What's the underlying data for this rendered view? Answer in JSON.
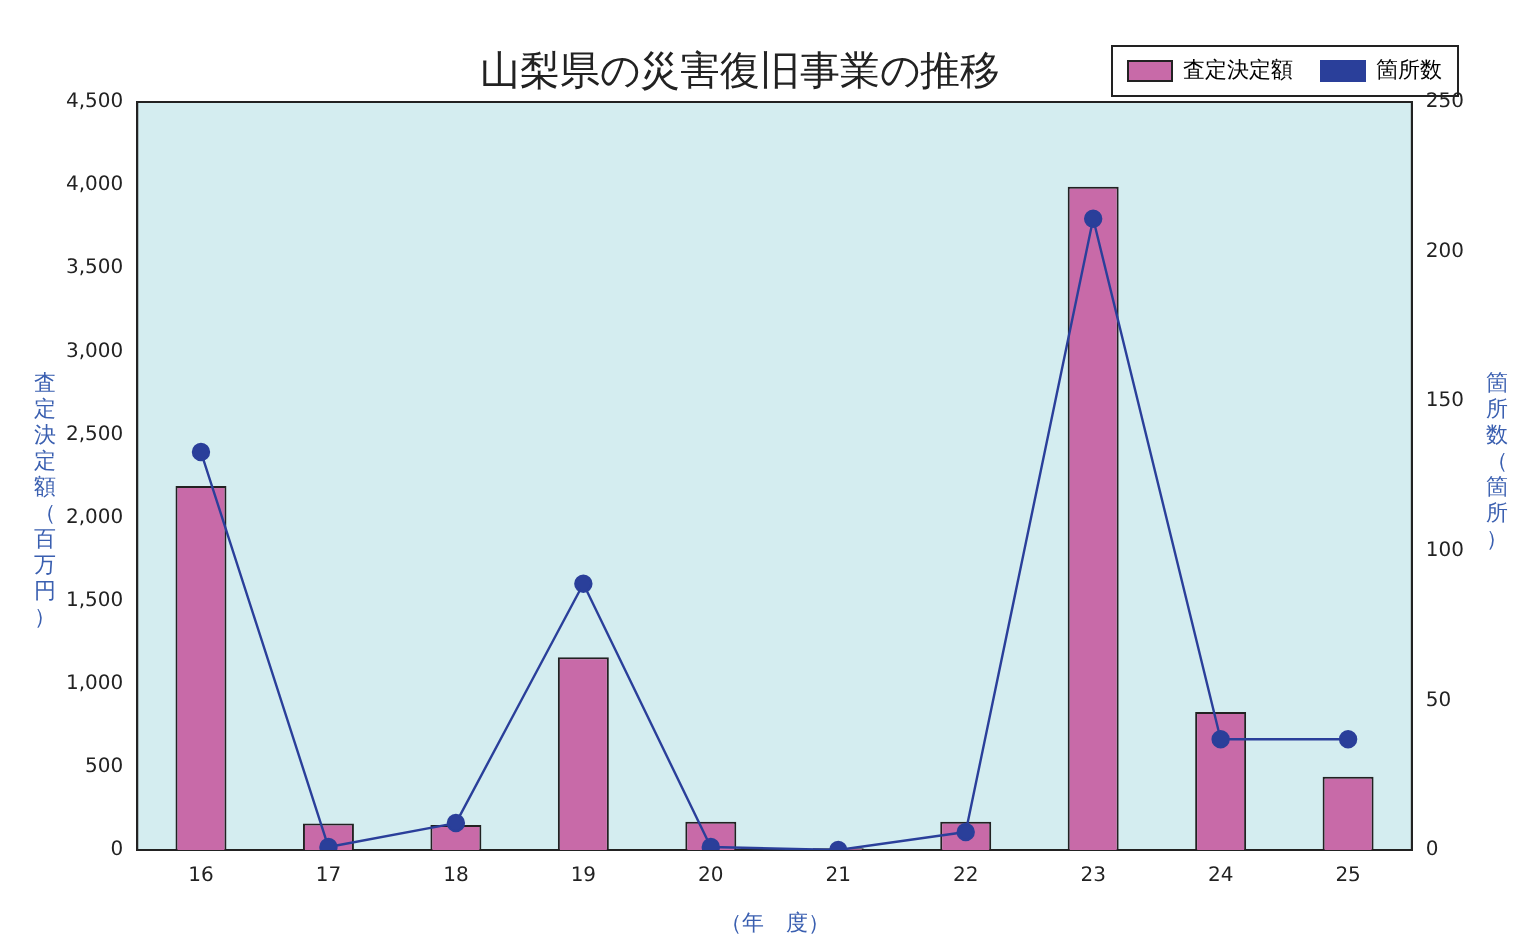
{
  "chart_data": {
    "type": "bar",
    "title": "山梨県の災害復旧事業の推移",
    "xlabel": "（年　度）",
    "ylabel": "査定決定額（百万円）",
    "y2label": "箇所数（箇所）",
    "categories": [
      "16",
      "17",
      "18",
      "19",
      "20",
      "21",
      "22",
      "23",
      "24",
      "25"
    ],
    "series": [
      {
        "name": "査定決定額",
        "color": "#c86aa8",
        "values": [
          2190,
          160,
          150,
          1160,
          170,
          10,
          170,
          3990,
          830,
          440
        ]
      },
      {
        "name": "箇所数",
        "type": "line",
        "axis": "y2",
        "color": "#2a3f9a",
        "values": [
          133,
          1,
          9,
          89,
          1,
          0,
          6,
          211,
          37,
          37
        ]
      }
    ],
    "ylim": [
      0,
      4500
    ],
    "yticks": [
      {
        "value": 0,
        "label": "0"
      },
      {
        "value": 500,
        "label": "500"
      },
      {
        "value": 1000,
        "label": "1,000"
      },
      {
        "value": 1500,
        "label": "1,500"
      },
      {
        "value": 2000,
        "label": "2,000"
      },
      {
        "value": 2500,
        "label": "2,500"
      },
      {
        "value": 3000,
        "label": "3,000"
      },
      {
        "value": 3500,
        "label": "3,500"
      },
      {
        "value": 4000,
        "label": "4,000"
      },
      {
        "value": 4500,
        "label": "4,500"
      }
    ],
    "y2lim": [
      0,
      250
    ],
    "y2ticks": [
      0,
      50,
      100,
      150,
      200,
      250
    ],
    "grid": false,
    "legend": "top right",
    "marker": "circle",
    "line_style": "solid"
  }
}
